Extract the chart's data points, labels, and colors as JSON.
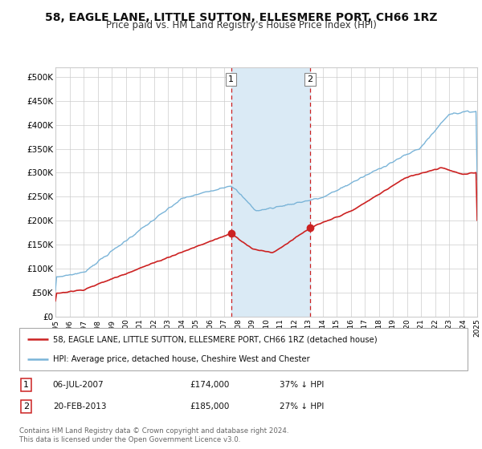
{
  "title": "58, EAGLE LANE, LITTLE SUTTON, ELLESMERE PORT, CH66 1RZ",
  "subtitle": "Price paid vs. HM Land Registry's House Price Index (HPI)",
  "title_fontsize": 10,
  "subtitle_fontsize": 8.5,
  "ylim": [
    0,
    520000
  ],
  "yticks": [
    0,
    50000,
    100000,
    150000,
    200000,
    250000,
    300000,
    350000,
    400000,
    450000,
    500000
  ],
  "ytick_labels": [
    "£0",
    "£50K",
    "£100K",
    "£150K",
    "£200K",
    "£250K",
    "£300K",
    "£350K",
    "£400K",
    "£450K",
    "£500K"
  ],
  "hpi_color": "#7ab4d8",
  "price_color": "#cc2222",
  "shade_color": "#daeaf5",
  "grid_color": "#cccccc",
  "background_color": "#ffffff",
  "transaction1_date": 2007.5,
  "transaction1_price": 174000,
  "transaction2_date": 2013.12,
  "transaction2_price": 185000,
  "legend_line1": "58, EAGLE LANE, LITTLE SUTTON, ELLESMERE PORT, CH66 1RZ (detached house)",
  "legend_line2": "HPI: Average price, detached house, Cheshire West and Chester",
  "footer": "Contains HM Land Registry data © Crown copyright and database right 2024.\nThis data is licensed under the Open Government Licence v3.0.",
  "xmin": 1995,
  "xmax": 2025
}
